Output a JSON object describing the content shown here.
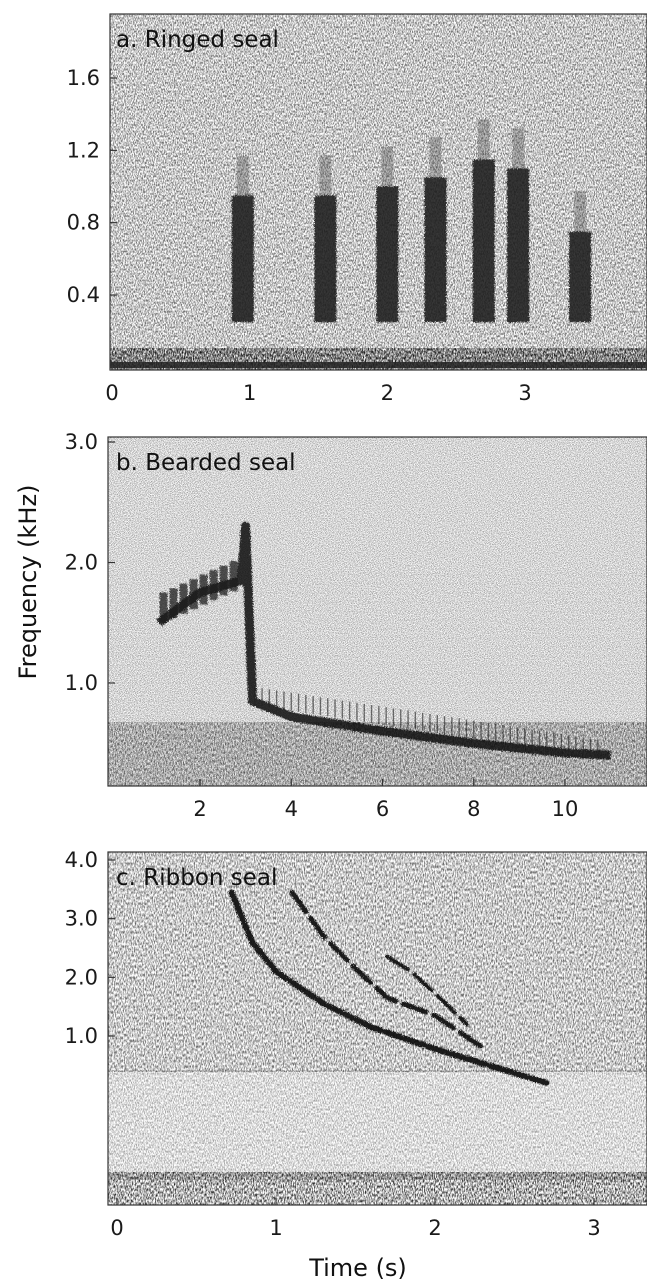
{
  "figure": {
    "ylabel": "Frequency (kHz)",
    "xlabel": "Time (s)"
  },
  "chart_data": [
    {
      "type": "heatmap",
      "title": "a. Ringed seal",
      "xlim": [
        0,
        3.9
      ],
      "ylim": [
        0,
        2.0
      ],
      "x_ticks": [
        0,
        1,
        2,
        3
      ],
      "x_tick_labels": [
        "0",
        "1",
        "2",
        "3"
      ],
      "y_ticks": [
        0.4,
        0.8,
        1.2,
        1.6
      ],
      "y_tick_labels": [
        "0.4",
        "0.8",
        "1.2",
        "1.6"
      ],
      "grid": false,
      "call_energy": [
        {
          "t": 0.95,
          "f_low": 0.25,
          "f_high": 0.95
        },
        {
          "t": 1.55,
          "f_low": 0.25,
          "f_high": 0.95
        },
        {
          "t": 2.0,
          "f_low": 0.25,
          "f_high": 1.0
        },
        {
          "t": 2.35,
          "f_low": 0.25,
          "f_high": 1.05
        },
        {
          "t": 2.7,
          "f_low": 0.25,
          "f_high": 1.15
        },
        {
          "t": 2.95,
          "f_low": 0.25,
          "f_high": 1.1
        },
        {
          "t": 3.4,
          "f_low": 0.25,
          "f_high": 0.75
        }
      ]
    },
    {
      "type": "heatmap",
      "title": "b. Bearded seal",
      "xlim": [
        0,
        12.0
      ],
      "ylim": [
        0.2,
        3.0
      ],
      "x_ticks": [
        2,
        4,
        6,
        8,
        10
      ],
      "x_tick_labels": [
        "2",
        "4",
        "6",
        "8",
        "10"
      ],
      "y_ticks": [
        1.0,
        2.0,
        3.0
      ],
      "y_tick_labels": [
        "1.0",
        "2.0",
        "3.0"
      ],
      "grid": false,
      "call_contour": [
        {
          "t": 1.1,
          "f": 1.5
        },
        {
          "t": 2.0,
          "f": 1.75
        },
        {
          "t": 2.9,
          "f": 1.85
        },
        {
          "t": 3.0,
          "f": 2.3
        },
        {
          "t": 3.15,
          "f": 0.85
        },
        {
          "t": 4.0,
          "f": 0.72
        },
        {
          "t": 6.0,
          "f": 0.6
        },
        {
          "t": 8.0,
          "f": 0.5
        },
        {
          "t": 10.0,
          "f": 0.42
        },
        {
          "t": 11.0,
          "f": 0.4
        }
      ]
    },
    {
      "type": "heatmap",
      "title": "c. Ribbon seal",
      "xlim": [
        0,
        3.25
      ],
      "ylim": [
        0,
        4.0
      ],
      "x_ticks": [
        0,
        1,
        2,
        3
      ],
      "x_tick_labels": [
        "0",
        "1",
        "2",
        "3"
      ],
      "y_ticks": [
        1.0,
        2.0,
        3.0,
        4.0
      ],
      "y_tick_labels": [
        "1.0",
        "2.0",
        "3.0",
        "4.0"
      ],
      "grid": false,
      "call_contours": [
        [
          {
            "t": 0.72,
            "f": 3.45
          },
          {
            "t": 0.85,
            "f": 2.6
          },
          {
            "t": 1.0,
            "f": 2.1
          },
          {
            "t": 1.3,
            "f": 1.55
          },
          {
            "t": 1.6,
            "f": 1.15
          },
          {
            "t": 2.0,
            "f": 0.78
          },
          {
            "t": 2.4,
            "f": 0.45
          },
          {
            "t": 2.7,
            "f": 0.2
          }
        ],
        [
          {
            "t": 1.1,
            "f": 3.45
          },
          {
            "t": 1.3,
            "f": 2.7
          },
          {
            "t": 1.5,
            "f": 2.15
          },
          {
            "t": 1.7,
            "f": 1.65
          },
          {
            "t": 2.0,
            "f": 1.35
          },
          {
            "t": 2.3,
            "f": 0.8
          }
        ],
        [
          {
            "t": 1.7,
            "f": 2.35
          },
          {
            "t": 1.85,
            "f": 2.1
          },
          {
            "t": 2.05,
            "f": 1.6
          },
          {
            "t": 2.2,
            "f": 1.2
          }
        ]
      ]
    }
  ]
}
